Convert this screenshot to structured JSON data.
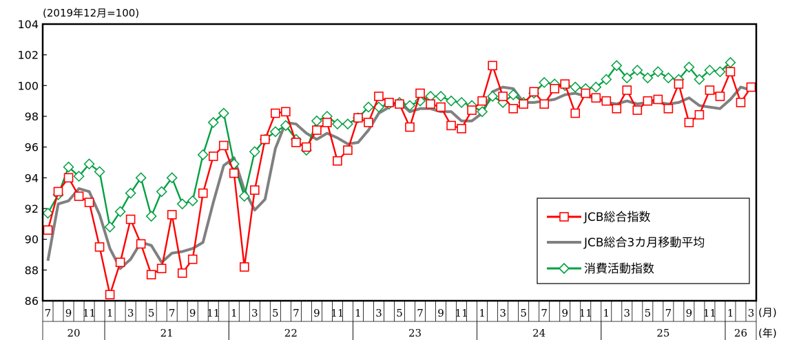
{
  "chart_data": {
    "type": "line",
    "subtitle": "(2019年12月=100)",
    "unit_month": "(月)",
    "unit_year": "(年)",
    "ylim": [
      86,
      104
    ],
    "yticks": [
      86,
      88,
      90,
      92,
      94,
      96,
      98,
      100,
      102,
      104
    ],
    "grid": false,
    "legend_position": "bottom-right",
    "x": [
      "2020-07",
      "2020-08",
      "2020-09",
      "2020-10",
      "2020-11",
      "2020-12",
      "2021-01",
      "2021-02",
      "2021-03",
      "2021-04",
      "2021-05",
      "2021-06",
      "2021-07",
      "2021-08",
      "2021-09",
      "2021-10",
      "2021-11",
      "2021-12",
      "2022-01",
      "2022-02",
      "2022-03",
      "2022-04",
      "2022-05",
      "2022-06",
      "2022-07",
      "2022-08",
      "2022-09",
      "2022-10",
      "2022-11",
      "2022-12",
      "2023-01",
      "2023-02",
      "2023-03",
      "2023-04",
      "2023-05",
      "2023-06",
      "2023-07",
      "2023-08",
      "2023-09",
      "2023-10",
      "2023-11",
      "2023-12",
      "2024-01",
      "2024-02",
      "2024-03",
      "2024-04",
      "2024-05",
      "2024-06",
      "2024-07",
      "2024-08",
      "2024-09",
      "2024-10",
      "2024-11",
      "2024-12",
      "2025-01",
      "2025-02",
      "2025-03",
      "2025-04",
      "2025-05",
      "2025-06",
      "2025-07",
      "2025-08",
      "2025-09",
      "2025-10",
      "2025-11",
      "2025-12",
      "2026-01",
      "2026-02",
      "2026-03"
    ],
    "month_labels": [
      "7",
      "",
      "9",
      "",
      "11",
      "",
      "1",
      "",
      "3",
      "",
      "5",
      "",
      "7",
      "",
      "9",
      "",
      "11",
      "",
      "1",
      "",
      "3",
      "",
      "5",
      "",
      "7",
      "",
      "9",
      "",
      "11",
      "",
      "1",
      "",
      "3",
      "",
      "5",
      "",
      "7",
      "",
      "9",
      "",
      "11",
      "",
      "1",
      "",
      "3",
      "",
      "5",
      "",
      "7",
      "",
      "9",
      "",
      "11",
      "",
      "1",
      "",
      "3",
      "",
      "5",
      "",
      "7",
      "",
      "9",
      "",
      "11",
      "",
      "1",
      "",
      "3"
    ],
    "year_labels": [
      {
        "label": "20",
        "start": 0,
        "end": 6
      },
      {
        "label": "21",
        "start": 6,
        "end": 18
      },
      {
        "label": "22",
        "start": 18,
        "end": 30
      },
      {
        "label": "23",
        "start": 30,
        "end": 42
      },
      {
        "label": "24",
        "start": 42,
        "end": 54
      },
      {
        "label": "25",
        "start": 54,
        "end": 66
      },
      {
        "label": "26",
        "start": 66,
        "end": 69
      }
    ],
    "series": [
      {
        "name": "JCB総合指数",
        "color": "#ff0000",
        "marker": "square",
        "values": [
          90.6,
          93.1,
          94.0,
          92.8,
          92.4,
          89.5,
          86.4,
          88.5,
          91.3,
          89.7,
          87.7,
          88.1,
          91.6,
          87.8,
          88.7,
          93.0,
          95.4,
          96.1,
          94.3,
          88.2,
          93.2,
          96.5,
          98.2,
          98.3,
          96.3,
          96.0,
          97.1,
          97.6,
          95.1,
          95.8,
          97.9,
          97.6,
          99.3,
          98.9,
          98.8,
          97.3,
          99.5,
          98.8,
          98.6,
          97.4,
          97.2,
          98.4,
          99.0,
          101.3,
          99.3,
          98.5,
          98.8,
          99.6,
          98.8,
          99.8,
          100.1,
          98.2,
          99.5,
          99.2,
          99.0,
          98.5,
          99.7,
          98.4,
          99.0,
          99.1,
          98.5,
          100.1,
          97.6,
          98.1,
          99.7,
          99.3,
          100.9,
          98.9,
          99.9
        ]
      },
      {
        "name": "JCB総合3カ月移動平均",
        "color": "#808080",
        "marker": "none",
        "values": [
          88.6,
          92.3,
          92.5,
          93.3,
          93.1,
          91.6,
          89.4,
          88.1,
          88.7,
          89.8,
          89.6,
          88.5,
          89.1,
          89.2,
          89.4,
          89.8,
          92.4,
          94.8,
          95.3,
          93.2,
          91.9,
          92.6,
          95.9,
          97.6,
          97.5,
          96.9,
          96.5,
          96.9,
          96.6,
          96.2,
          96.3,
          97.1,
          98.2,
          98.6,
          98.9,
          98.3,
          98.5,
          98.5,
          98.3,
          98.3,
          97.7,
          97.7,
          98.2,
          99.6,
          99.9,
          99.8,
          98.9,
          98.9,
          99.0,
          99.1,
          99.4,
          99.5,
          99.3,
          99.2,
          98.9,
          98.8,
          99.0,
          98.8,
          98.9,
          98.9,
          98.8,
          98.9,
          99.2,
          98.7,
          98.6,
          98.5,
          99.1,
          99.9,
          99.7
        ]
      },
      {
        "name": "消費活動指数",
        "color": "#00a040",
        "marker": "diamond",
        "values": [
          91.7,
          92.9,
          94.7,
          94.1,
          94.9,
          94.4,
          90.8,
          91.8,
          93.0,
          94.0,
          91.5,
          93.1,
          94.0,
          92.3,
          92.5,
          95.5,
          97.6,
          98.2,
          94.9,
          92.8,
          95.7,
          96.5,
          97.0,
          97.4,
          96.5,
          95.8,
          97.7,
          98.0,
          97.5,
          97.5,
          97.9,
          98.6,
          98.6,
          98.8,
          98.9,
          98.7,
          99.0,
          99.3,
          99.3,
          99.0,
          98.9,
          98.7,
          98.3,
          99.3,
          98.9,
          99.4,
          98.9,
          99.5,
          100.2,
          100.1,
          100.0,
          99.9,
          99.8,
          99.9,
          100.4,
          101.3,
          100.5,
          101.0,
          100.5,
          100.9,
          100.5,
          100.4,
          101.2,
          100.4,
          101.0,
          100.9,
          101.5,
          null,
          null
        ]
      }
    ]
  }
}
